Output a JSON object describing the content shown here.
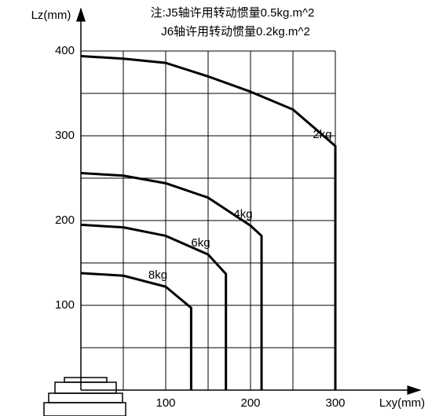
{
  "chart_data": {
    "type": "line",
    "note": [
      "注:J5轴许用转动惯量0.5kg.m^2",
      "J6轴许用转动惯量0.2kg.m^2"
    ],
    "x_label": "Lxy(mm)",
    "y_label": "Lz(mm)",
    "xlim": [
      0,
      400
    ],
    "ylim": [
      0,
      450
    ],
    "xticks": [
      100,
      200,
      300
    ],
    "yticks": [
      100,
      200,
      300,
      400
    ],
    "grid": true,
    "grid_x": [
      50,
      100,
      150,
      200,
      250,
      300
    ],
    "grid_y": [
      50,
      100,
      150,
      200,
      250,
      300,
      350,
      400
    ],
    "series": [
      {
        "name": "2kg",
        "color": "#000000",
        "x": [
          0,
          50,
          100,
          150,
          200,
          250,
          300,
          300
        ],
        "values": [
          394,
          391,
          386,
          370,
          352,
          331,
          288,
          0
        ]
      },
      {
        "name": "4kg",
        "color": "#000000",
        "x": [
          0,
          50,
          100,
          150,
          200,
          213,
          213
        ],
        "values": [
          256,
          253,
          244,
          227,
          194,
          182,
          0
        ]
      },
      {
        "name": "6kg",
        "color": "#000000",
        "x": [
          0,
          50,
          100,
          150,
          171,
          171
        ],
        "values": [
          195,
          192,
          182,
          160,
          137,
          0
        ]
      },
      {
        "name": "8kg",
        "color": "#000000",
        "x": [
          0,
          50,
          100,
          130,
          130
        ],
        "values": [
          138,
          135,
          122,
          97,
          0
        ]
      }
    ]
  }
}
